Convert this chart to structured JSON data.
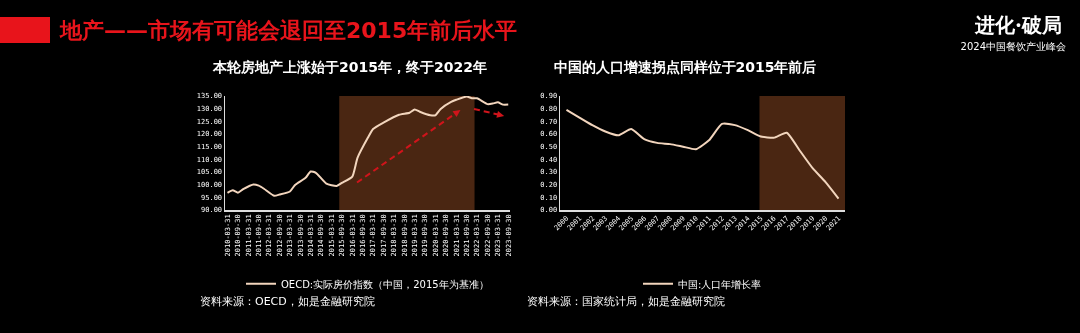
{
  "chart_data": [
    {
      "type": "line",
      "title": "本轮房地产上涨始于2015年，终于2022年",
      "annotations": [
        "地产——市场有可能会退回至2015年前后水平",
        "进化·破局",
        "2024中国餐饮产业峰会",
        "资料来源：OECD，如是金融研究院"
      ],
      "x": [
        "2010-03-31",
        "2010-06-30",
        "2010-09-30",
        "2010-12-31",
        "2011-06-30",
        "2011-09-30",
        "2011-12-31",
        "2012-06-30",
        "2012-09-30",
        "2013-03-31",
        "2013-06-30",
        "2013-12-31",
        "2014-03-31",
        "2014-06-30",
        "2014-12-31",
        "2015-06-30",
        "2015-09-30",
        "2016-03-31",
        "2016-06-30",
        "2016-12-31",
        "2017-03-31",
        "2017-09-30",
        "2018-06-30",
        "2018-12-31",
        "2019-03-31",
        "2019-06-30",
        "2019-12-31",
        "2020-03-31",
        "2020-06-30",
        "2020-12-31",
        "2021-03-31",
        "2021-09-30",
        "2021-12-31",
        "2022-03-31",
        "2022-09-30",
        "2022-12-31",
        "2023-03-31",
        "2023-06-30",
        "2023-09-30"
      ],
      "series": [
        {
          "name": "OECD:实际房价指数（中国，2015年为基准）",
          "color": "#f2d5bd",
          "values": [
            96.8,
            97.8,
            96.8,
            98.2,
            100.1,
            99.6,
            98.4,
            95.6,
            96.1,
            97.3,
            99.9,
            102.7,
            105.2,
            104.7,
            100.4,
            99.5,
            100.7,
            103.2,
            110.6,
            118.6,
            122.0,
            124.5,
            127.6,
            128.4,
            129.7,
            128.8,
            127.4,
            127.4,
            129.9,
            132.7,
            133.5,
            134.8,
            134.1,
            134.1,
            131.8,
            132.0,
            132.5,
            131.6,
            131.6
          ]
        }
      ],
      "xlim": [
        "2010-02-15",
        "2023-10-31"
      ],
      "xticks": [
        {
          "value": "2010-03-31",
          "label": "2010-03-31"
        },
        {
          "value": "2010-09-30",
          "label": "2010-09-30"
        },
        {
          "value": "2011-03-31",
          "label": "2011-03-31"
        },
        {
          "value": "2011-09-30",
          "label": "2011-09-30"
        },
        {
          "value": "2012-03-31",
          "label": "2012-03-31"
        },
        {
          "value": "2012-09-30",
          "label": "2012-09-30"
        },
        {
          "value": "2013-03-31",
          "label": "2013-03-31"
        },
        {
          "value": "2013-09-30",
          "label": "2013-09-30"
        },
        {
          "value": "2014-03-31",
          "label": "2014-03-31"
        },
        {
          "value": "2014-09-30",
          "label": "2014-09-30"
        },
        {
          "value": "2015-03-31",
          "label": "2015-03-31"
        },
        {
          "value": "2015-09-30",
          "label": "2015-09-30"
        },
        {
          "value": "2016-03-31",
          "label": "2016-03-31"
        },
        {
          "value": "2016-09-30",
          "label": "2016-09-30"
        },
        {
          "value": "2017-03-31",
          "label": "2017-03-31"
        },
        {
          "value": "2017-09-30",
          "label": "2017-09-30"
        },
        {
          "value": "2018-03-31",
          "label": "2018-03-31"
        },
        {
          "value": "2018-09-30",
          "label": "2018-09-30"
        },
        {
          "value": "2019-03-31",
          "label": "2019-03-31"
        },
        {
          "value": "2019-09-30",
          "label": "2019-09-30"
        },
        {
          "value": "2020-03-31",
          "label": "2020-03-31"
        },
        {
          "value": "2020-09-30",
          "label": "2020-09-30"
        },
        {
          "value": "2021-03-31",
          "label": "2021-03-31"
        },
        {
          "value": "2021-09-30",
          "label": "2021-09-30"
        },
        {
          "value": "2022-03-31",
          "label": "2022-03-31"
        },
        {
          "value": "2022-09-30",
          "label": "2022-09-30"
        },
        {
          "value": "2023-03-31",
          "label": "2023-03-31"
        },
        {
          "value": "2023-09-30",
          "label": "2023-09-30"
        }
      ],
      "ylim": [
        90,
        135
      ],
      "yticks": [
        {
          "value": 90,
          "label": "90.00"
        },
        {
          "value": 95,
          "label": "95.00"
        },
        {
          "value": 100,
          "label": "100.00"
        },
        {
          "value": 105,
          "label": "105.00"
        },
        {
          "value": 110,
          "label": "110.00"
        },
        {
          "value": 115,
          "label": "115.00"
        },
        {
          "value": 120,
          "label": "120.00"
        },
        {
          "value": 125,
          "label": "125.00"
        },
        {
          "value": 130,
          "label": "130.00"
        },
        {
          "value": 135,
          "label": "135.00"
        }
      ],
      "bands": [
        {
          "axis": "x",
          "from": "2015-08-15",
          "to": "2022-02-15",
          "color": "#4a2612"
        }
      ],
      "grid": false,
      "legend": "bottom"
    },
    {
      "type": "line",
      "title": "中国的人口增速拐点同样位于2015年前后",
      "annotations": [
        "资料来源：国家统计局，如是金融研究院"
      ],
      "x": [
        2000,
        2001,
        2002,
        2003,
        2004,
        2005,
        2006,
        2007,
        2008,
        2009,
        2010,
        2011,
        2012,
        2013,
        2014,
        2015,
        2016,
        2017,
        2018,
        2019,
        2020,
        2021
      ],
      "series": [
        {
          "name": "中国:人口年增长率",
          "color": "#f2d5bd",
          "values": [
            0.79,
            0.73,
            0.67,
            0.62,
            0.59,
            0.64,
            0.56,
            0.53,
            0.52,
            0.5,
            0.48,
            0.55,
            0.68,
            0.67,
            0.63,
            0.58,
            0.57,
            0.61,
            0.47,
            0.33,
            0.22,
            0.09
          ]
        }
      ],
      "xlim": [
        1999.5,
        2021.5
      ],
      "xticks": [
        2000,
        2001,
        2002,
        2003,
        2004,
        2005,
        2006,
        2007,
        2008,
        2009,
        2010,
        2011,
        2012,
        2013,
        2014,
        2015,
        2016,
        2017,
        2018,
        2019,
        2020,
        2021
      ],
      "ylim": [
        0,
        0.9
      ],
      "yticks": [
        {
          "value": 0,
          "label": "0.00"
        },
        {
          "value": 0.1,
          "label": "0.10"
        },
        {
          "value": 0.2,
          "label": "0.20"
        },
        {
          "value": 0.3,
          "label": "0.30"
        },
        {
          "value": 0.4,
          "label": "0.40"
        },
        {
          "value": 0.5,
          "label": "0.50"
        },
        {
          "value": 0.6,
          "label": "0.60"
        },
        {
          "value": 0.7,
          "label": "0.70"
        },
        {
          "value": 0.8,
          "label": "0.80"
        },
        {
          "value": 0.9,
          "label": "0.90"
        }
      ],
      "bands": [
        {
          "axis": "x",
          "from": 2014.9,
          "to": 2021.5,
          "color": "#4a2612"
        }
      ],
      "grid": false,
      "legend": "bottom"
    }
  ]
}
